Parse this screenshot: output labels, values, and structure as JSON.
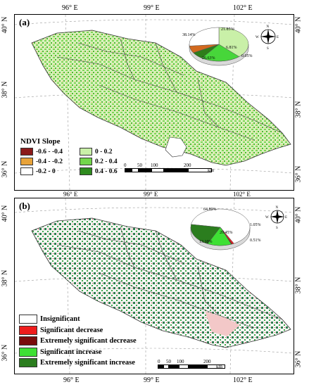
{
  "figure": {
    "longitude_labels_top": [
      "96° E",
      "99° E",
      "102° E"
    ],
    "longitude_labels_bottom": [
      "96° E",
      "99° E",
      "102° E"
    ],
    "latitude_labels": [
      "40° N",
      "38° N",
      "36° N"
    ]
  },
  "panel_a": {
    "tag": "(a)",
    "legend_title": "NDVI Slope",
    "legend": [
      {
        "label": "-0.6 - -0.4",
        "color": "#8b1a1a"
      },
      {
        "label": "0 - 0.2",
        "color": "#c9f0a8"
      },
      {
        "label": "-0.4 - -0.2",
        "color": "#e8a33a"
      },
      {
        "label": "0.2 - 0.4",
        "color": "#72d64a"
      },
      {
        "label": "-0.2 - 0",
        "color": "#ffffff"
      },
      {
        "label": "0.4 - 0.6",
        "color": "#2e8b1e"
      }
    ],
    "scale_ticks": [
      "0",
      "50",
      "100",
      "200"
    ],
    "scale_unit": "km",
    "pie": [
      {
        "label": "38.14%",
        "value": 38.14,
        "color": "#c9f0a8"
      },
      {
        "label": "21.85%",
        "value": 21.85,
        "color": "#47d63a"
      },
      {
        "label": "6.81%",
        "value": 6.81,
        "color": "#2e7d1a"
      },
      {
        "label": "0.05%",
        "value": 0.05,
        "color": "#8b1a1a"
      },
      {
        "label": "6.81%",
        "value": 6.81,
        "color": "#d2691e"
      },
      {
        "label": "26.63%",
        "value": 26.63,
        "color": "#ffffff"
      }
    ],
    "compass": {
      "n": "N",
      "s": "S",
      "e": "E",
      "w": "W"
    }
  },
  "panel_b": {
    "tag": "(b)",
    "legend": [
      {
        "label": "Insignificant",
        "color": "#ffffff"
      },
      {
        "label": "Significant decrease",
        "color": "#ee1c1c"
      },
      {
        "label": "Extremely significant decrease",
        "color": "#7a0c0c"
      },
      {
        "label": "Significant increase",
        "color": "#3ee034"
      },
      {
        "label": "Extremely significant increase",
        "color": "#2b7d1e"
      }
    ],
    "scale_ticks": [
      "0",
      "50",
      "100",
      "200"
    ],
    "scale_unit": "km",
    "pie": [
      {
        "label": "64.89%",
        "value": 64.89,
        "color": "#ffffff"
      },
      {
        "label": "1.05%",
        "value": 1.05,
        "color": "#ee1c1c"
      },
      {
        "label": "0.51%",
        "value": 0.51,
        "color": "#7a0c0c"
      },
      {
        "label": "13.10%",
        "value": 13.1,
        "color": "#3ee034"
      },
      {
        "label": "20.45%",
        "value": 20.45,
        "color": "#2b7d1e"
      }
    ],
    "compass": {
      "n": "N",
      "s": "S",
      "e": "E",
      "w": "W"
    }
  }
}
